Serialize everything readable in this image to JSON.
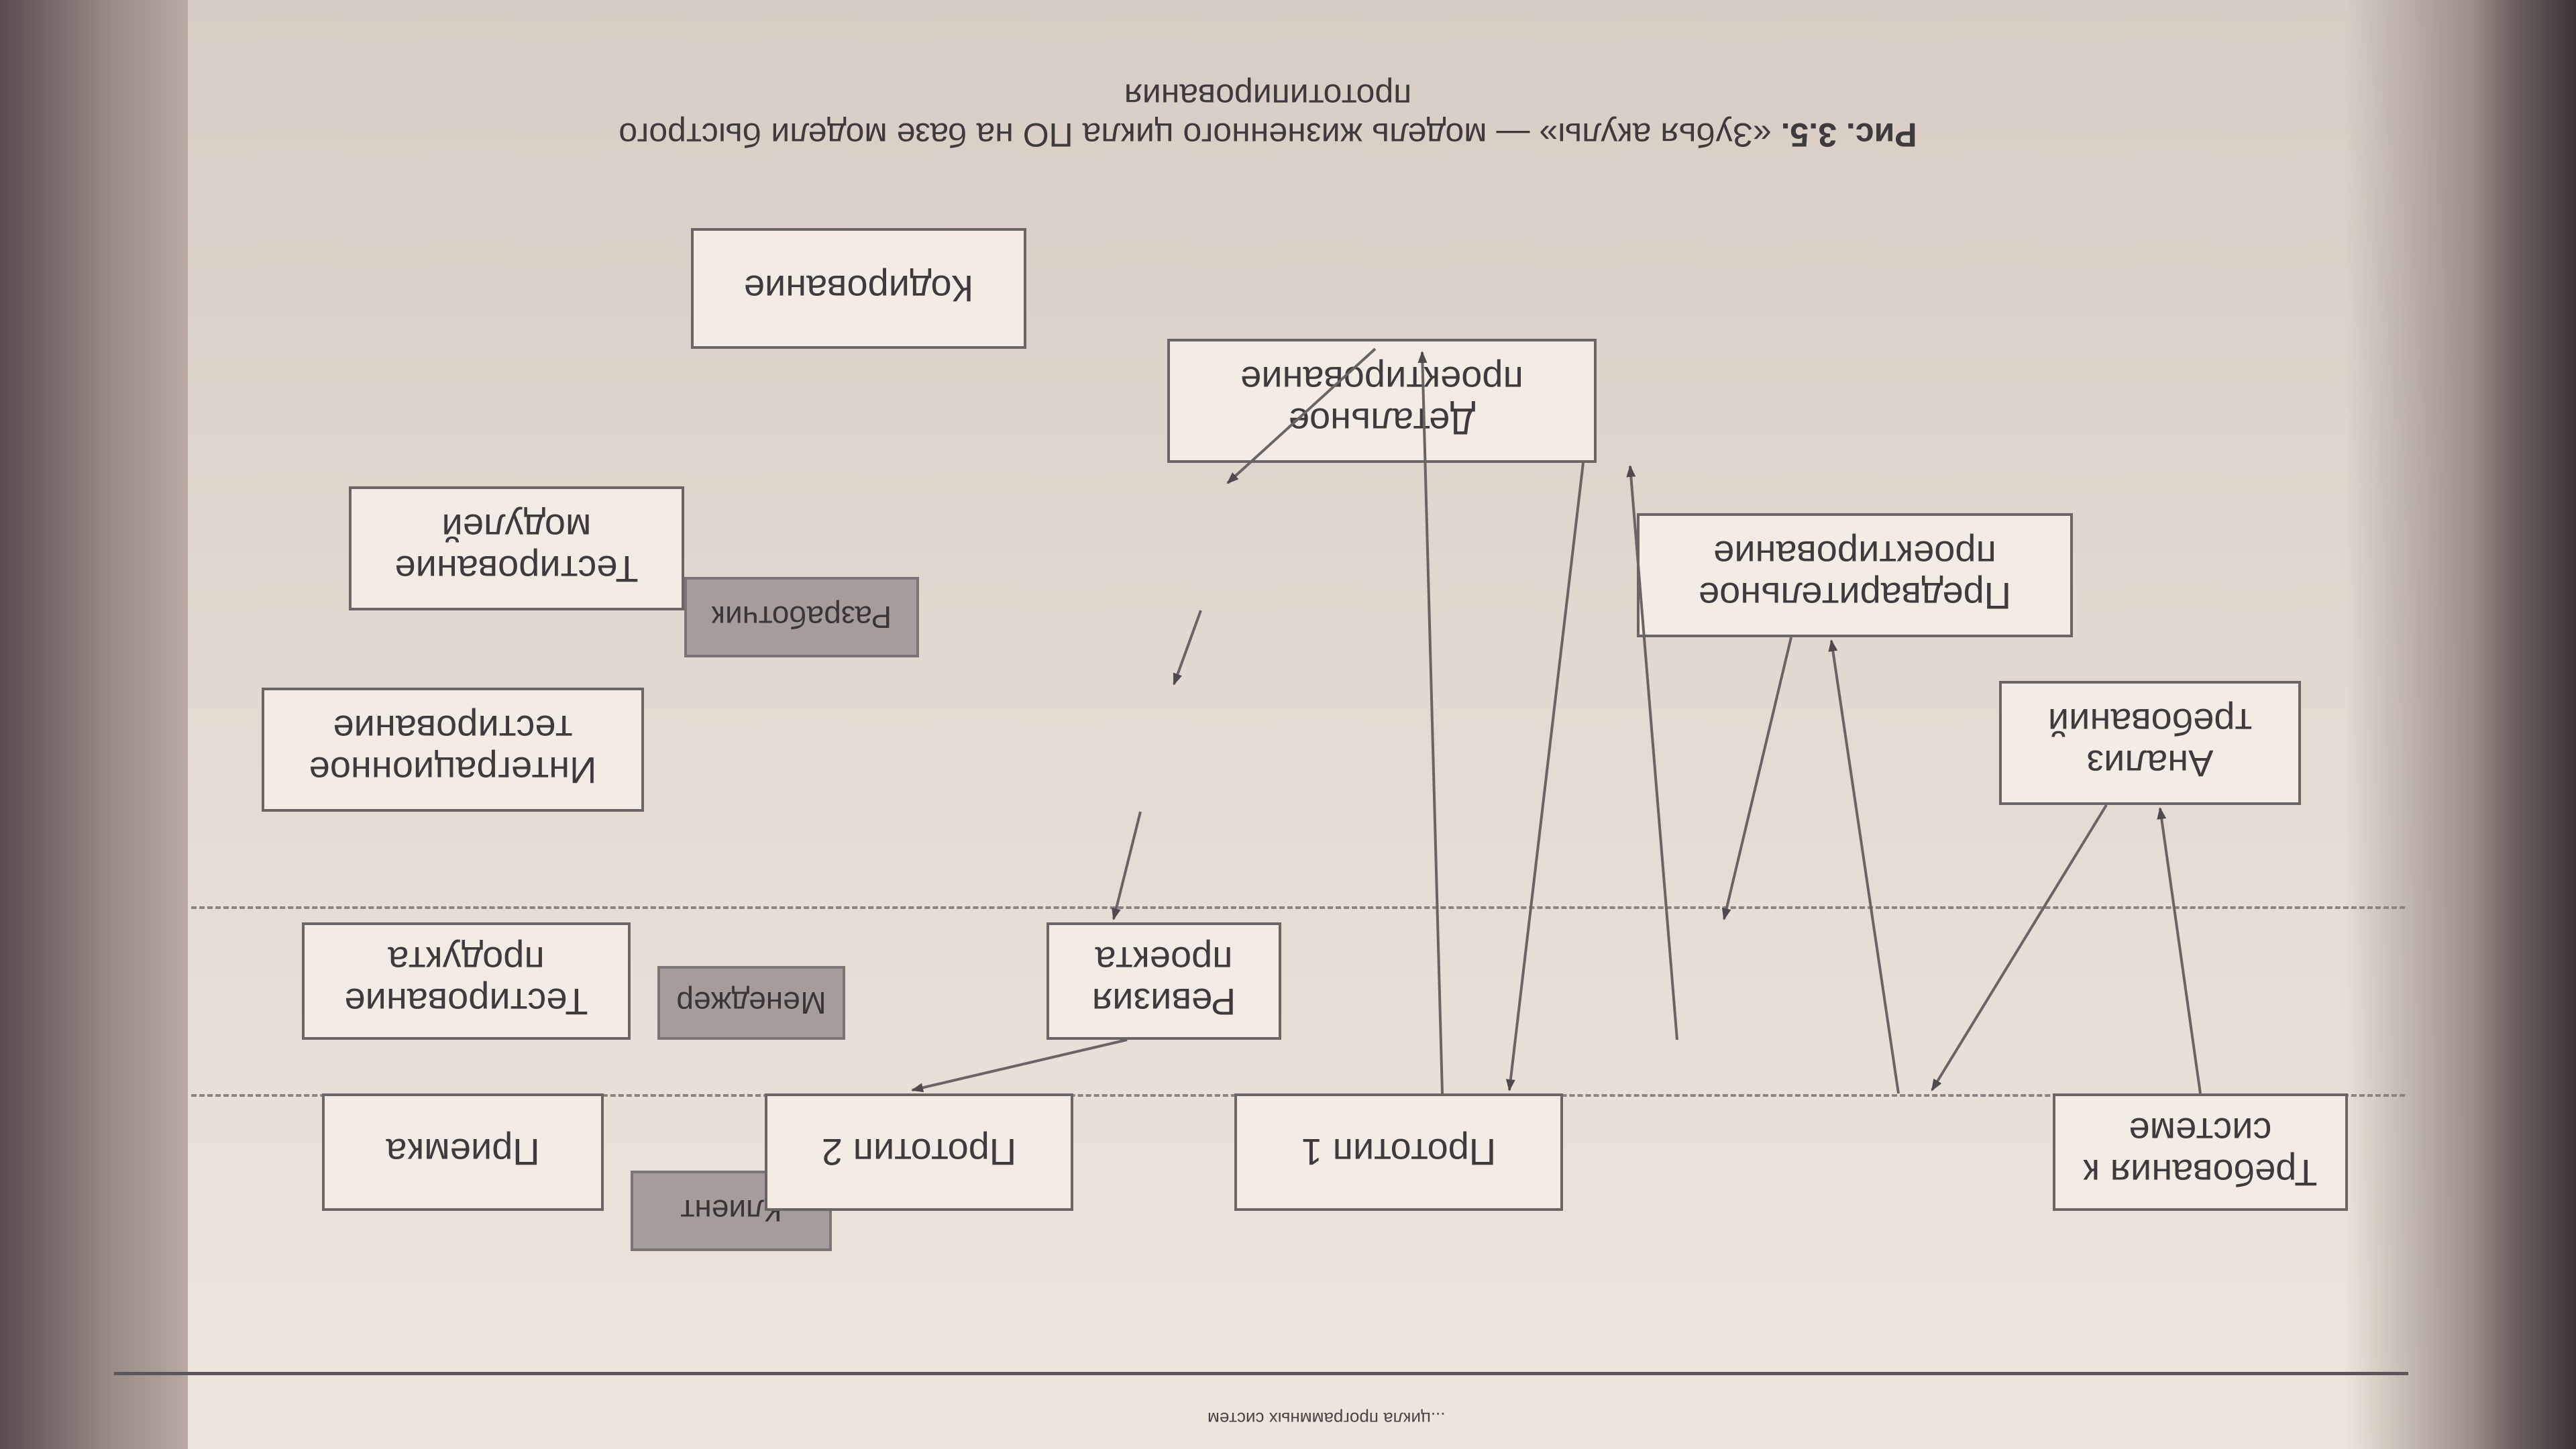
{
  "header": {
    "running_text": "...цикла программных систем"
  },
  "roles": [
    {
      "id": "client",
      "label": "Клиент"
    },
    {
      "id": "manager",
      "label": "Менеджер"
    },
    {
      "id": "developer",
      "label": "Разработчик"
    }
  ],
  "nodes": {
    "requirements": "Требования к системе",
    "prototype1": "Прототип 1",
    "prototype2": "Прототип 2",
    "acceptance": "Приемка",
    "project_review": "Ревизия проекта",
    "product_testing": "Тестирование продукта",
    "analysis": "Анализ требований",
    "prelim_design": "Предварительное проектирование",
    "detail_design": "Детальное проектирование",
    "coding": "Кодирование",
    "module_testing": "Тестирование модулей",
    "integration_testing": "Интеграционное тестирование"
  },
  "caption": {
    "label": "Рис. 3.5.",
    "text": "«Зубья акулы» — модель жизненного цикла ПО на базе модели быстрого прототипирования"
  },
  "colors": {
    "page": "#e9e1d8",
    "box_border": "#6b6565",
    "role_fill": "#a59d9b",
    "text": "#3f3a3c"
  }
}
